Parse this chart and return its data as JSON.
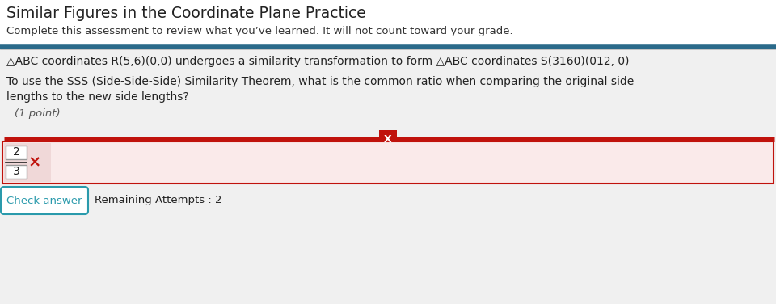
{
  "title": "Similar Figures in the Coordinate Plane Practice",
  "subtitle": "Complete this assessment to review what you’ve learned. It will not count toward your grade.",
  "body_line1": "△ABC coordinates R₅₆(0,0) undergoes a similarity transformation to form △ABC coordinates S(3160)(012, 0)",
  "body_line2": "To use the SSS (Side-Side-Side) Similarity Theorem, what is the common ratio when comparing the original side",
  "body_line3": "lengths to the new side lengths?",
  "point_label": "(1 point)",
  "fraction_num": "2",
  "fraction_den": "3",
  "check_answer_text": "Check answer",
  "remaining_text": "Remaining Attempts : 2",
  "bg_color": "#e8e8e8",
  "header_bg": "#ffffff",
  "content_bg": "#f0f0f0",
  "title_color": "#222222",
  "subtitle_color": "#333333",
  "body_color": "#222222",
  "point_color": "#555555",
  "red_line_color": "#c0120c",
  "x_marker_color": "#ffffff",
  "x_marker_bg": "#c0120c",
  "fraction_box_bg": "#f0d8d8",
  "fraction_border": "#999999",
  "answer_area_bg": "#faeaea",
  "answer_area_border": "#c0120c",
  "check_btn_border": "#2a9aac",
  "check_btn_text": "#2a9aac",
  "teal_line_color": "#2a6a8a",
  "separator_color": "#b0b0b0"
}
